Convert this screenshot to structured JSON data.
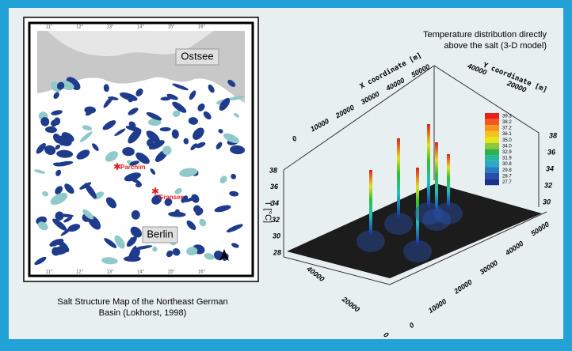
{
  "map": {
    "sea": "Ostsee",
    "cities": [
      "Parchim",
      "Gransee",
      "Berlin"
    ],
    "lon_labels": [
      "11°",
      "12°",
      "13°",
      "14°",
      "15°",
      "16°"
    ],
    "caption": [
      "Salt Structure Map of the Northeast German",
      "Basin (Lokhorst, 1998)"
    ]
  },
  "model": {
    "title": [
      "Temperature distribution directly",
      "above the salt (3-D model)"
    ],
    "x_axis_label": "X coordinate [m]",
    "y_axis_label": "Y coordinate [m]",
    "z_axis_label": "T [°C]",
    "x_back_ticks": [
      0,
      10000,
      20000,
      30000,
      40000,
      50000
    ],
    "y_back_ticks": [
      40000,
      20000
    ],
    "front_left_ticks": [
      40000,
      20000,
      0
    ],
    "front_right_ticks": [
      0,
      10000,
      20000,
      30000,
      40000,
      50000
    ],
    "z_left_ticks": [
      28,
      30,
      32,
      34,
      36,
      38
    ],
    "z_right_ticks": [
      30,
      32,
      34,
      36,
      38
    ],
    "colorbar": [
      "39.3",
      "38.2",
      "37.2",
      "36.1",
      "35.0",
      "34.0",
      "32.9",
      "31.9",
      "30.8",
      "29.8",
      "28.7",
      "27.7"
    ]
  }
}
